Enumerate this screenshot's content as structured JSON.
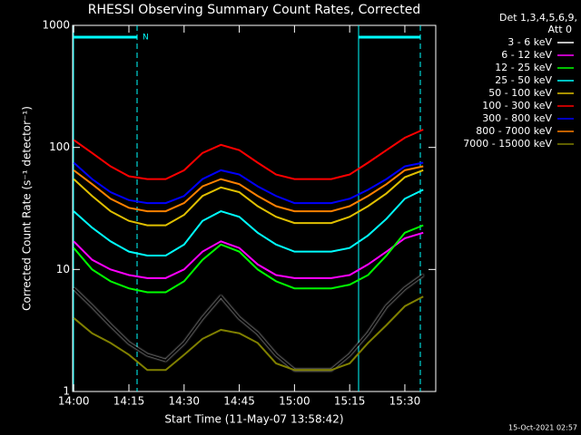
{
  "chart_data": {
    "type": "line",
    "title": "RHESSI Observing Summary Count Rates, Corrected",
    "x_label": "Start Time (11-May-07 13:58:42)",
    "y_label": "Corrected Count Rate (s⁻¹ detector⁻¹)",
    "legend_title": [
      "Det 1,3,4,5,6,9,",
      "Att 0"
    ],
    "annotation": "N",
    "footer": "15-Oct-2021 02:57",
    "log_y": true,
    "xlim": [
      -0.3,
      98.4
    ],
    "xticks": [
      {
        "value": 0,
        "label": "14:00"
      },
      {
        "value": 15,
        "label": "14:15"
      },
      {
        "value": 30,
        "label": "14:30"
      },
      {
        "value": 45,
        "label": "14:45"
      },
      {
        "value": 60,
        "label": "15:00"
      },
      {
        "value": 75,
        "label": "15:15"
      },
      {
        "value": 90,
        "label": "15:30"
      }
    ],
    "ylim": [
      1,
      1000
    ],
    "yticks": [
      1,
      10,
      100,
      1000
    ],
    "x": [
      0,
      5,
      10,
      15,
      20,
      25,
      30,
      35,
      40,
      45,
      50,
      55,
      60,
      65,
      70,
      75,
      80,
      85,
      90,
      95
    ],
    "series": [
      {
        "name": "3 - 6 keV",
        "color": "#000000",
        "values": [
          7,
          5,
          3.5,
          2.5,
          2,
          1.8,
          2.5,
          4,
          6,
          4,
          3,
          2,
          1.5,
          1.5,
          1.5,
          2,
          3,
          5,
          7,
          9
        ]
      },
      {
        "name": "6 - 12 keV",
        "color": "#ff00ff",
        "values": [
          17,
          12,
          10,
          9,
          8.5,
          8.5,
          10,
          14,
          17,
          15,
          11,
          9,
          8.5,
          8.5,
          8.5,
          9,
          11,
          14,
          18,
          20
        ]
      },
      {
        "name": "12 - 25 keV",
        "color": "#00ff00",
        "values": [
          15,
          10,
          8,
          7,
          6.5,
          6.5,
          8,
          12,
          16,
          14,
          10,
          8,
          7,
          7,
          7,
          7.5,
          9,
          13,
          20,
          23
        ]
      },
      {
        "name": "25 - 50 keV",
        "color": "#00ffff",
        "values": [
          30,
          22,
          17,
          14,
          13,
          13,
          16,
          25,
          30,
          27,
          20,
          16,
          14,
          14,
          14,
          15,
          19,
          26,
          38,
          45
        ]
      },
      {
        "name": "50 - 100 keV",
        "color": "#e0c000",
        "values": [
          55,
          40,
          30,
          25,
          23,
          23,
          28,
          40,
          47,
          43,
          33,
          27,
          24,
          24,
          24,
          27,
          33,
          42,
          57,
          65
        ]
      },
      {
        "name": "100 - 300 keV",
        "color": "#ff0000",
        "values": [
          115,
          90,
          70,
          58,
          55,
          55,
          65,
          90,
          105,
          95,
          75,
          60,
          55,
          55,
          55,
          60,
          75,
          95,
          120,
          140
        ]
      },
      {
        "name": "300 - 800 keV",
        "color": "#0000ff",
        "values": [
          75,
          55,
          43,
          37,
          35,
          35,
          40,
          55,
          65,
          60,
          48,
          40,
          35,
          35,
          35,
          38,
          45,
          55,
          70,
          75
        ]
      },
      {
        "name": "800 - 7000 keV",
        "color": "#ff8000",
        "values": [
          65,
          50,
          38,
          32,
          30,
          30,
          35,
          48,
          55,
          50,
          40,
          33,
          30,
          30,
          30,
          33,
          40,
          50,
          65,
          70
        ]
      },
      {
        "name": "7000 - 15000 keV",
        "color": "#808000",
        "values": [
          4,
          3,
          2.5,
          2,
          1.5,
          1.5,
          2,
          2.7,
          3.2,
          3,
          2.5,
          1.7,
          1.5,
          1.5,
          1.5,
          1.7,
          2.5,
          3.5,
          5,
          6
        ]
      }
    ]
  }
}
